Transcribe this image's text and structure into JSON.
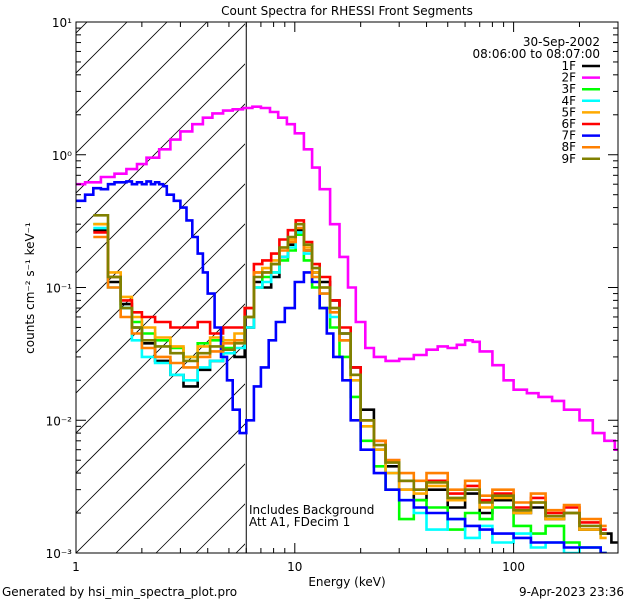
{
  "chart_data": {
    "type": "line",
    "title": "Count Spectra for RHESSI Front Segments",
    "xlabel": "Energy (keV)",
    "ylabel": "counts cm⁻² s⁻¹ keV⁻¹",
    "xscale": "log",
    "yscale": "log",
    "xlim": [
      1,
      300
    ],
    "ylim": [
      0.001,
      10
    ],
    "x_ticks": [
      {
        "v": 1,
        "label": "1"
      },
      {
        "v": 10,
        "label": "10"
      },
      {
        "v": 100,
        "label": "100"
      }
    ],
    "y_ticks": [
      {
        "v": 0.001,
        "label": "10⁻³"
      },
      {
        "v": 0.01,
        "label": "10⁻²"
      },
      {
        "v": 0.1,
        "label": "10⁻¹"
      },
      {
        "v": 1,
        "label": "10⁰"
      },
      {
        "v": 10,
        "label": "10¹"
      }
    ],
    "hatch_range": [
      1,
      6
    ],
    "date": "30-Sep-2002",
    "time_range": "08:06:00 to 08:07:00",
    "annotations": [
      "Includes Background",
      "Att A1, FDecim 1"
    ],
    "series": [
      {
        "name": "1F",
        "color": "#000000",
        "x": [
          1.2,
          1.4,
          1.6,
          1.8,
          2.0,
          2.3,
          2.7,
          3.1,
          3.6,
          4.1,
          4.7,
          5.3,
          5.9,
          6.5,
          7.1,
          7.8,
          8.5,
          9.3,
          10.1,
          11,
          12,
          13,
          14.5,
          16,
          18,
          20,
          23,
          26,
          30,
          35,
          40,
          50,
          60,
          70,
          80,
          100,
          120,
          140,
          170,
          200,
          250,
          280
        ],
        "y": [
          0.27,
          0.11,
          0.075,
          0.05,
          0.038,
          0.028,
          0.022,
          0.018,
          0.024,
          0.028,
          0.034,
          0.03,
          0.05,
          0.11,
          0.1,
          0.12,
          0.17,
          0.21,
          0.27,
          0.19,
          0.13,
          0.11,
          0.08,
          0.045,
          0.025,
          0.012,
          0.006,
          0.0045,
          0.003,
          0.0025,
          0.003,
          0.0022,
          0.0028,
          0.002,
          0.0025,
          0.002,
          0.0022,
          0.0018,
          0.002,
          0.0015,
          0.0014,
          0.0012
        ]
      },
      {
        "name": "2F",
        "color": "#ff00ff",
        "x": [
          1.0,
          1.1,
          1.3,
          1.5,
          1.7,
          1.9,
          2.1,
          2.4,
          2.7,
          3.0,
          3.4,
          3.8,
          4.2,
          4.7,
          5.2,
          5.8,
          6.4,
          7.0,
          7.7,
          8.4,
          9.2,
          10,
          11,
          12,
          13,
          14.5,
          16,
          17.5,
          19,
          21,
          23,
          26,
          30,
          35,
          40,
          45,
          50,
          55,
          60,
          65,
          70,
          80,
          90,
          100,
          115,
          130,
          150,
          170,
          200,
          230,
          260,
          290
        ],
        "y": [
          0.6,
          0.62,
          0.68,
          0.72,
          0.78,
          0.85,
          0.95,
          1.1,
          1.3,
          1.5,
          1.7,
          1.9,
          2.05,
          2.15,
          2.2,
          2.25,
          2.3,
          2.25,
          2.1,
          1.9,
          1.7,
          1.45,
          1.1,
          0.8,
          0.55,
          0.3,
          0.17,
          0.1,
          0.055,
          0.035,
          0.03,
          0.028,
          0.029,
          0.031,
          0.034,
          0.036,
          0.035,
          0.037,
          0.04,
          0.039,
          0.033,
          0.026,
          0.02,
          0.017,
          0.016,
          0.015,
          0.014,
          0.012,
          0.01,
          0.008,
          0.007,
          0.006
        ]
      },
      {
        "name": "3F",
        "color": "#00ff00",
        "x": [
          1.2,
          1.4,
          1.6,
          1.8,
          2.0,
          2.3,
          2.7,
          3.1,
          3.6,
          4.1,
          4.7,
          5.3,
          5.9,
          6.5,
          7.1,
          7.8,
          8.5,
          9.3,
          10.1,
          11,
          12,
          13,
          14.5,
          16,
          18,
          20,
          23,
          26,
          30,
          35,
          40,
          50,
          60,
          70,
          80,
          100,
          120,
          140,
          170,
          200,
          250
        ],
        "y": [
          0.3,
          0.12,
          0.07,
          0.055,
          0.045,
          0.04,
          0.035,
          0.03,
          0.038,
          0.04,
          0.035,
          0.04,
          0.06,
          0.1,
          0.12,
          0.13,
          0.16,
          0.19,
          0.25,
          0.16,
          0.1,
          0.07,
          0.05,
          0.03,
          0.015,
          0.007,
          0.0045,
          0.003,
          0.0018,
          0.0025,
          0.0022,
          0.0015,
          0.002,
          0.0018,
          0.0022,
          0.0016,
          0.0014,
          0.0016,
          0.0012,
          0.0011,
          0.001
        ]
      },
      {
        "name": "4F",
        "color": "#00ffff",
        "x": [
          1.2,
          1.4,
          1.6,
          1.8,
          2.0,
          2.3,
          2.7,
          3.1,
          3.6,
          4.1,
          4.7,
          5.3,
          5.9,
          6.5,
          7.1,
          7.8,
          8.5,
          9.3,
          10.1,
          11,
          12,
          13,
          14.5,
          16,
          18,
          20,
          23,
          26,
          30,
          35,
          40,
          50,
          60,
          70,
          80,
          100,
          120,
          140,
          170,
          200,
          250
        ],
        "y": [
          0.28,
          0.1,
          0.07,
          0.04,
          0.03,
          0.027,
          0.022,
          0.02,
          0.025,
          0.028,
          0.032,
          0.035,
          0.05,
          0.1,
          0.11,
          0.13,
          0.17,
          0.2,
          0.26,
          0.18,
          0.12,
          0.09,
          0.06,
          0.04,
          0.02,
          0.009,
          0.006,
          0.004,
          0.0025,
          0.002,
          0.0015,
          0.0018,
          0.0013,
          0.0016,
          0.0012,
          0.0014,
          0.0011,
          0.0012,
          0.001,
          0.0011,
          0.001
        ]
      },
      {
        "name": "5F",
        "color": "#ffaa00",
        "x": [
          1.2,
          1.4,
          1.6,
          1.8,
          2.0,
          2.3,
          2.7,
          3.1,
          3.6,
          4.1,
          4.7,
          5.3,
          5.9,
          6.5,
          7.1,
          7.8,
          8.5,
          9.3,
          10.1,
          11,
          12,
          13,
          14.5,
          16,
          18,
          20,
          23,
          26,
          30,
          35,
          40,
          50,
          60,
          70,
          80,
          100,
          120,
          140,
          170,
          200,
          250
        ],
        "y": [
          0.3,
          0.13,
          0.085,
          0.06,
          0.05,
          0.042,
          0.036,
          0.03,
          0.036,
          0.042,
          0.04,
          0.045,
          0.07,
          0.13,
          0.14,
          0.16,
          0.2,
          0.23,
          0.3,
          0.2,
          0.13,
          0.1,
          0.07,
          0.04,
          0.02,
          0.009,
          0.006,
          0.004,
          0.003,
          0.0028,
          0.0032,
          0.0025,
          0.003,
          0.0022,
          0.0026,
          0.002,
          0.0024,
          0.0018,
          0.002,
          0.0015,
          0.0013
        ]
      },
      {
        "name": "6F",
        "color": "#ff0000",
        "x": [
          1.2,
          1.4,
          1.6,
          1.8,
          2.0,
          2.3,
          2.7,
          3.1,
          3.6,
          4.1,
          4.7,
          5.3,
          5.9,
          6.5,
          7.1,
          7.8,
          8.5,
          9.3,
          10.1,
          11,
          12,
          13,
          14.5,
          16,
          18,
          20,
          23,
          26,
          30,
          35,
          40,
          50,
          60,
          70,
          80,
          100,
          120,
          140,
          170,
          200,
          250
        ],
        "y": [
          0.26,
          0.12,
          0.08,
          0.065,
          0.06,
          0.055,
          0.05,
          0.05,
          0.055,
          0.045,
          0.05,
          0.05,
          0.07,
          0.15,
          0.16,
          0.18,
          0.23,
          0.27,
          0.32,
          0.22,
          0.15,
          0.12,
          0.08,
          0.05,
          0.025,
          0.01,
          0.007,
          0.005,
          0.0035,
          0.003,
          0.0035,
          0.0028,
          0.0032,
          0.0025,
          0.0028,
          0.0022,
          0.0026,
          0.002,
          0.0022,
          0.0017,
          0.0015
        ]
      },
      {
        "name": "7F",
        "color": "#0000ff",
        "x": [
          1.0,
          1.1,
          1.2,
          1.3,
          1.4,
          1.5,
          1.6,
          1.7,
          1.8,
          1.9,
          2.0,
          2.1,
          2.2,
          2.3,
          2.4,
          2.5,
          2.6,
          2.8,
          3.0,
          3.2,
          3.4,
          3.6,
          3.8,
          4.0,
          4.3,
          4.6,
          4.9,
          5.2,
          5.6,
          6.0,
          6.5,
          7.0,
          7.6,
          8.2,
          9.0,
          10.0,
          11.0,
          12.0,
          13.0,
          14.0,
          15.0,
          16.5,
          18,
          20,
          23,
          26,
          30,
          35,
          40,
          50,
          60,
          70,
          80,
          100,
          120,
          140,
          170,
          200,
          250
        ],
        "y": [
          0.45,
          0.5,
          0.56,
          0.55,
          0.6,
          0.62,
          0.62,
          0.63,
          0.6,
          0.62,
          0.6,
          0.63,
          0.6,
          0.62,
          0.6,
          0.58,
          0.5,
          0.45,
          0.4,
          0.32,
          0.24,
          0.18,
          0.13,
          0.09,
          0.05,
          0.03,
          0.02,
          0.012,
          0.008,
          0.01,
          0.018,
          0.025,
          0.04,
          0.055,
          0.07,
          0.11,
          0.13,
          0.11,
          0.07,
          0.045,
          0.03,
          0.02,
          0.01,
          0.006,
          0.004,
          0.003,
          0.0025,
          0.0022,
          0.002,
          0.0018,
          0.0016,
          0.0015,
          0.0014,
          0.0013,
          0.0012,
          0.0012,
          0.0011,
          0.0011,
          0.001
        ]
      },
      {
        "name": "8F",
        "color": "#ff8000",
        "x": [
          1.2,
          1.4,
          1.6,
          1.8,
          2.0,
          2.3,
          2.7,
          3.1,
          3.6,
          4.1,
          4.7,
          5.3,
          5.9,
          6.5,
          7.1,
          7.8,
          8.5,
          9.3,
          10.1,
          11,
          12,
          13,
          14.5,
          16,
          18,
          20,
          23,
          26,
          30,
          35,
          40,
          50,
          60,
          70,
          80,
          100,
          120,
          140,
          170,
          200,
          250
        ],
        "y": [
          0.24,
          0.1,
          0.06,
          0.045,
          0.035,
          0.03,
          0.027,
          0.025,
          0.03,
          0.033,
          0.038,
          0.04,
          0.06,
          0.13,
          0.13,
          0.15,
          0.19,
          0.22,
          0.28,
          0.19,
          0.12,
          0.09,
          0.065,
          0.04,
          0.022,
          0.01,
          0.007,
          0.005,
          0.004,
          0.0035,
          0.004,
          0.003,
          0.0035,
          0.0027,
          0.003,
          0.0024,
          0.0028,
          0.0021,
          0.0023,
          0.0018,
          0.0016
        ]
      },
      {
        "name": "9F",
        "color": "#808000",
        "x": [
          1.2,
          1.4,
          1.6,
          1.8,
          2.0,
          2.3,
          2.7,
          3.1,
          3.6,
          4.1,
          4.7,
          5.3,
          5.9,
          6.5,
          7.1,
          7.8,
          8.5,
          9.3,
          10.1,
          11,
          12,
          13,
          14.5,
          16,
          18,
          20,
          23,
          26,
          30,
          35,
          40,
          50,
          60,
          70,
          80,
          100,
          120,
          140,
          170,
          200,
          250
        ],
        "y": [
          0.35,
          0.12,
          0.07,
          0.05,
          0.04,
          0.036,
          0.032,
          0.028,
          0.032,
          0.036,
          0.034,
          0.038,
          0.06,
          0.12,
          0.13,
          0.15,
          0.2,
          0.24,
          0.3,
          0.21,
          0.14,
          0.1,
          0.07,
          0.045,
          0.022,
          0.01,
          0.0065,
          0.0048,
          0.0035,
          0.003,
          0.0034,
          0.0026,
          0.003,
          0.0024,
          0.0027,
          0.0021,
          0.0024,
          0.0019,
          0.002,
          0.0016,
          0.0014
        ]
      }
    ]
  },
  "footer": {
    "generator": "Generated by hsi_min_spectra_plot.pro",
    "timestamp": "9-Apr-2023 23:36"
  }
}
